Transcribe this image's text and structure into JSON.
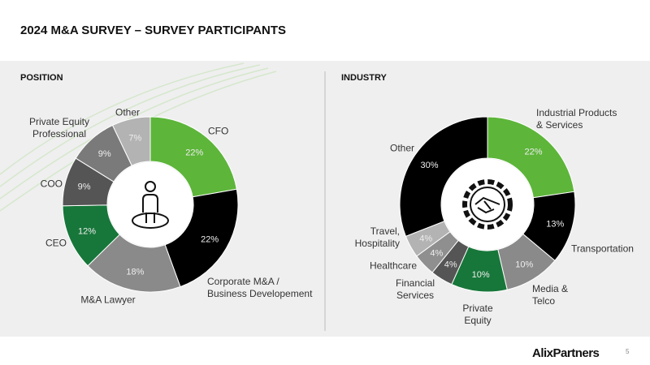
{
  "header": {
    "title": "2024 M&A SURVEY – SURVEY PARTICIPANTS"
  },
  "footer": {
    "logo": "AlixPartners",
    "page": "5"
  },
  "chart_data": [
    {
      "type": "pie",
      "title": "POSITION",
      "categories": [
        "CFO",
        "Corporate M&A / Business Developement",
        "M&A Lawyer",
        "CEO",
        "COO",
        "Private Equity Professional",
        "Other"
      ],
      "values": [
        22,
        22,
        18,
        12,
        9,
        9,
        7
      ],
      "value_labels": [
        "22%",
        "22%",
        "18%",
        "12%",
        "9%",
        "9%",
        "7%"
      ],
      "colors": [
        "#5db53a",
        "#000000",
        "#8a8a8a",
        "#17773a",
        "#555555",
        "#7a7a7a",
        "#b3b3b3"
      ]
    },
    {
      "type": "pie",
      "title": "INDUSTRY",
      "categories": [
        "Industrial Products & Services",
        "Transportation",
        "Media & Telco",
        "Private Equity",
        "Financial Services",
        "Healthcare",
        "Travel, Hospitality",
        "Other"
      ],
      "values": [
        22,
        13,
        10,
        10,
        4,
        4,
        4,
        30
      ],
      "value_labels": [
        "22%",
        "13%",
        "10%",
        "10%",
        "4%",
        "4%",
        "4%",
        "30%"
      ],
      "colors": [
        "#5db53a",
        "#000000",
        "#8a8a8a",
        "#17773a",
        "#555555",
        "#8f8f8f",
        "#b3b3b3",
        "#000000"
      ]
    }
  ]
}
